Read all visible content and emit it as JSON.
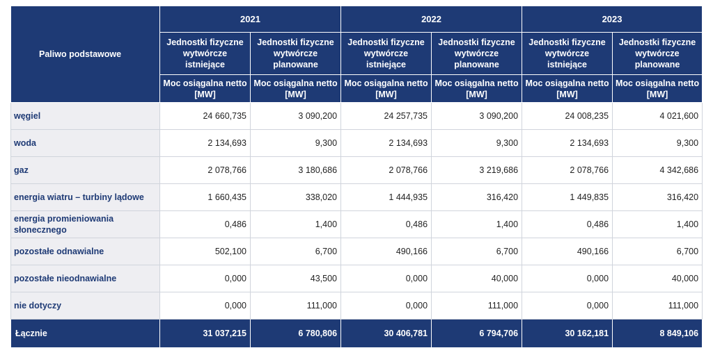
{
  "table": {
    "corner_label": "Paliwo podstawowe",
    "years": [
      "2021",
      "2022",
      "2023"
    ],
    "sub_headers": [
      "Jednostki fizyczne wytwórcze istniejące",
      "Jednostki fizyczne wytwórcze planowane",
      "Jednostki fizyczne wytwórcze istniejące",
      "Jednostki fizyczne wytwórcze planowane",
      "Jednostki fizyczne wytwórcze istniejące",
      "Jednostki fizyczne wytwórcze planowane"
    ],
    "unit_headers": [
      "Moc osiągalna netto [MW]",
      "Moc osiągalna netto [MW]",
      "Moc osiągalna netto [MW]",
      "Moc osiągalna netto [MW]",
      "Moc osiągalna netto [MW]",
      "Moc osiągalna netto [MW]"
    ],
    "rows": [
      {
        "label": "węgiel",
        "values": [
          "24 660,735",
          "3 090,200",
          "24 257,735",
          "3 090,200",
          "24 008,235",
          "4 021,600"
        ]
      },
      {
        "label": "woda",
        "values": [
          "2 134,693",
          "9,300",
          "2 134,693",
          "9,300",
          "2 134,693",
          "9,300"
        ]
      },
      {
        "label": "gaz",
        "values": [
          "2 078,766",
          "3 180,686",
          "2 078,766",
          "3 219,686",
          "2 078,766",
          "4 342,686"
        ]
      },
      {
        "label": "energia wiatru – turbiny lądowe",
        "values": [
          "1 660,435",
          "338,020",
          "1 444,935",
          "316,420",
          "1 449,835",
          "316,420"
        ]
      },
      {
        "label": "energia promieniowania słonecznego",
        "values": [
          "0,486",
          "1,400",
          "0,486",
          "1,400",
          "0,486",
          "1,400"
        ]
      },
      {
        "label": "pozostałe odnawialne",
        "values": [
          "502,100",
          "6,700",
          "490,166",
          "6,700",
          "490,166",
          "6,700"
        ]
      },
      {
        "label": "pozostałe nieodnawialne",
        "values": [
          "0,000",
          "43,500",
          "0,000",
          "40,000",
          "0,000",
          "40,000"
        ]
      },
      {
        "label": "nie dotyczy",
        "values": [
          "0,000",
          "111,000",
          "0,000",
          "111,000",
          "0,000",
          "111,000"
        ]
      }
    ],
    "total": {
      "label": "Łącznie",
      "values": [
        "31 037,215",
        "6 780,806",
        "30 406,781",
        "6 794,706",
        "30 162,181",
        "8 849,106"
      ]
    },
    "colors": {
      "header_bg": "#1e3a75",
      "label_bg": "#eeeef2",
      "label_text": "#1e3a75"
    }
  }
}
